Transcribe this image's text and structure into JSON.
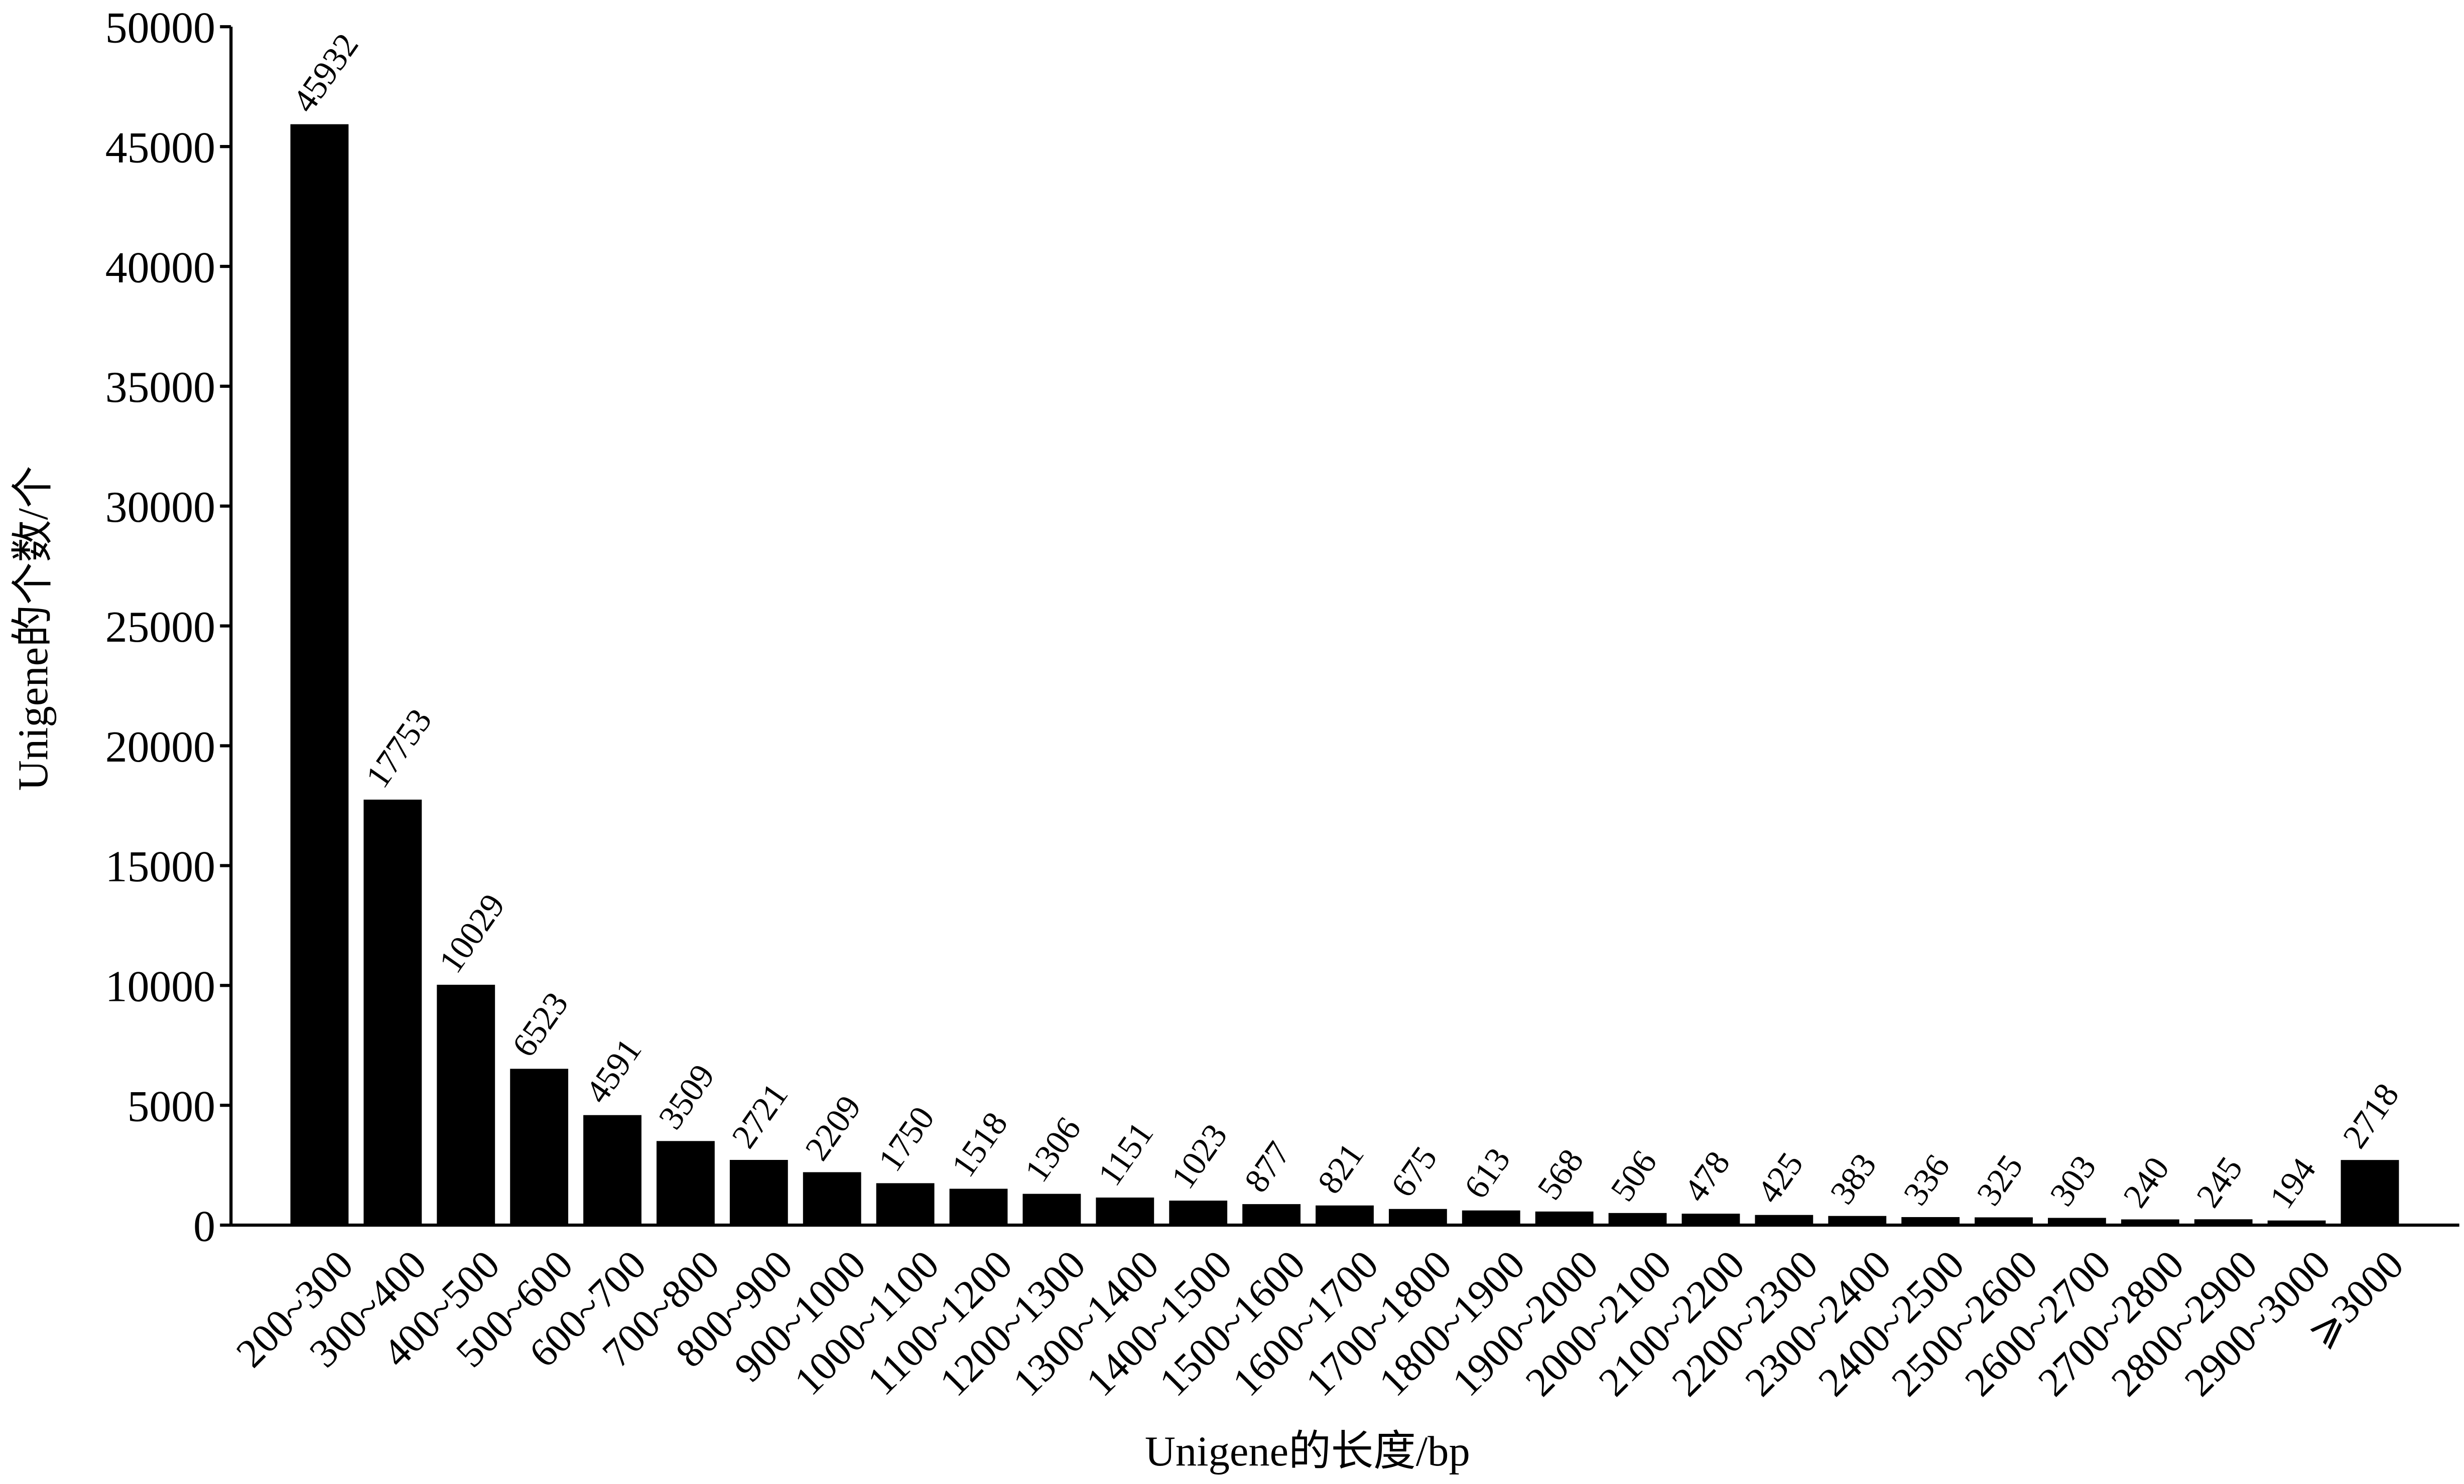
{
  "chart_data": {
    "type": "bar",
    "x_label": "Unigene的长度/bp",
    "y_label": "Unigene的个数/个",
    "categories": [
      "200~300",
      "300~400",
      "400~500",
      "500~600",
      "600~700",
      "700~800",
      "800~900",
      "900~1000",
      "1000~1100",
      "1100~1200",
      "1200~1300",
      "1300~1400",
      "1400~1500",
      "1500~1600",
      "1600~1700",
      "1700~1800",
      "1800~1900",
      "1900~2000",
      "2000~2100",
      "2100~2200",
      "2200~2300",
      "2300~2400",
      "2400~2500",
      "2500~2600",
      "2600~2700",
      "2700~2800",
      "2800~2900",
      "2900~3000",
      "⩾3000"
    ],
    "values": [
      45932,
      17753,
      10029,
      6523,
      4591,
      3509,
      2721,
      2209,
      1750,
      1518,
      1306,
      1151,
      1023,
      877,
      821,
      675,
      613,
      568,
      506,
      478,
      425,
      383,
      336,
      325,
      303,
      240,
      245,
      194,
      2718
    ],
    "color": "#000000",
    "ylim": [
      0,
      50000
    ],
    "yticks": [
      0,
      5000,
      10000,
      15000,
      20000,
      25000,
      30000,
      35000,
      40000,
      45000,
      50000
    ]
  }
}
